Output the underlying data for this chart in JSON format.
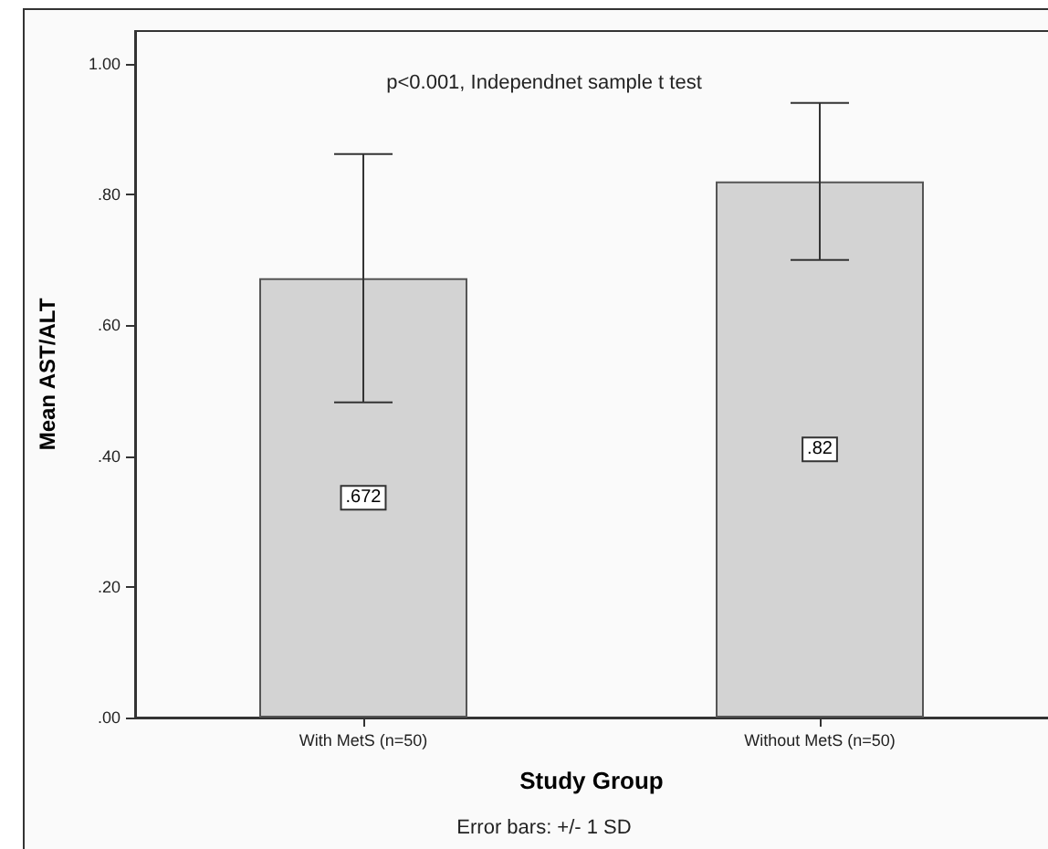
{
  "chart_data": {
    "type": "bar",
    "xlabel": "Study Group",
    "ylabel": "Mean AST/ALT",
    "categories": [
      "With MetS (n=50)",
      "Without MetS (n=50)"
    ],
    "values": [
      0.672,
      0.82
    ],
    "color": "#d3d3d3",
    "value_labels": [
      ".672",
      ".82"
    ],
    "errors": [
      0.19,
      0.12
    ],
    "ylim": [
      0,
      1.05
    ],
    "yticks": [
      {
        "value": 0,
        "label": ".00"
      },
      {
        "value": 0.2,
        "label": ".20"
      },
      {
        "value": 0.4,
        "label": ".40"
      },
      {
        "value": 0.6,
        "label": ".60"
      },
      {
        "value": 0.8,
        "label": ".80"
      },
      {
        "value": 1,
        "label": "1.00"
      }
    ],
    "grid": false,
    "annotations": [
      "p<0.001, Independnet sample t test",
      "Error bars: +/- 1 SD"
    ]
  }
}
